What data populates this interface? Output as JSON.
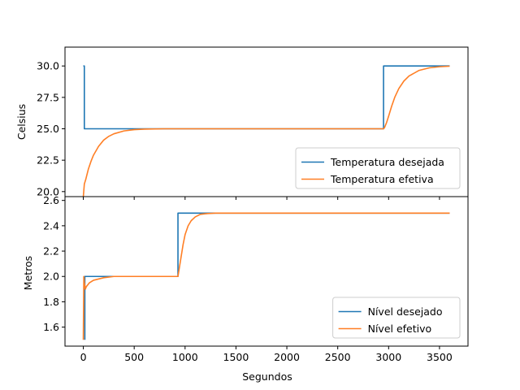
{
  "chart_data": [
    {
      "type": "line",
      "title": "",
      "xlabel": "",
      "ylabel": "Celsius",
      "xlim": [
        -180,
        3780
      ],
      "ylim": [
        19.6,
        31.5
      ],
      "xticks": [
        0,
        500,
        1000,
        1500,
        2000,
        2500,
        3000,
        3500
      ],
      "show_xtick_labels": false,
      "yticks": [
        20.0,
        22.5,
        25.0,
        27.5,
        30.0
      ],
      "ytick_labels": [
        "20.0",
        "22.5",
        "25.0",
        "27.5",
        "30.0"
      ],
      "grid": false,
      "legend_position": "lower-right",
      "series": [
        {
          "name": "Temperatura desejada",
          "color": "#1f77b4",
          "x": [
            0,
            10,
            10,
            2950,
            2950,
            3600
          ],
          "y": [
            30.0,
            30.0,
            25.0,
            25.0,
            30.0,
            30.0
          ]
        },
        {
          "name": "Temperatura efetiva",
          "color": "#ff7f25",
          "x": [
            0,
            10,
            25,
            50,
            75,
            100,
            150,
            200,
            250,
            300,
            400,
            500,
            600,
            800,
            1000,
            2000,
            2950,
            2960,
            2980,
            3000,
            3030,
            3060,
            3100,
            3150,
            3200,
            3300,
            3400,
            3500,
            3600
          ],
          "y": [
            19.6,
            20.6,
            21.0,
            21.8,
            22.4,
            22.9,
            23.6,
            24.1,
            24.4,
            24.6,
            24.83,
            24.93,
            24.97,
            25.0,
            25.0,
            25.0,
            25.0,
            25.1,
            25.5,
            26.0,
            26.8,
            27.5,
            28.2,
            28.8,
            29.2,
            29.65,
            29.85,
            29.94,
            29.98
          ]
        }
      ]
    },
    {
      "type": "line",
      "title": "",
      "xlabel": "Segundos",
      "ylabel": "Metros",
      "xlim": [
        -180,
        3780
      ],
      "ylim": [
        1.45,
        2.63
      ],
      "xticks": [
        0,
        500,
        1000,
        1500,
        2000,
        2500,
        3000,
        3500
      ],
      "xtick_labels": [
        "0",
        "500",
        "1000",
        "1500",
        "2000",
        "2500",
        "3000",
        "3500"
      ],
      "yticks": [
        1.6,
        1.8,
        2.0,
        2.2,
        2.4,
        2.6
      ],
      "ytick_labels": [
        "1.6",
        "1.8",
        "2.0",
        "2.2",
        "2.4",
        "2.6"
      ],
      "grid": false,
      "legend_position": "lower-right",
      "series": [
        {
          "name": "Nível desejado",
          "color": "#1f77b4",
          "x": [
            15,
            15,
            25,
            25,
            930,
            930,
            3600
          ],
          "y": [
            1.5,
            2.0,
            2.0,
            2.0,
            2.0,
            2.5,
            2.5
          ]
        },
        {
          "name": "Nível efetivo",
          "color": "#ff7f25",
          "x": [
            0,
            5,
            10,
            20,
            30,
            60,
            100,
            200,
            300,
            500,
            930,
            940,
            960,
            980,
            1000,
            1030,
            1060,
            1100,
            1150,
            1200,
            1300,
            1400,
            1500,
            2000,
            3600
          ],
          "y": [
            1.5,
            2.0,
            1.95,
            1.9,
            1.92,
            1.95,
            1.97,
            1.99,
            2.0,
            2.0,
            2.0,
            2.05,
            2.15,
            2.25,
            2.33,
            2.4,
            2.44,
            2.47,
            2.49,
            2.495,
            2.5,
            2.5,
            2.5,
            2.5,
            2.5
          ]
        }
      ]
    }
  ]
}
